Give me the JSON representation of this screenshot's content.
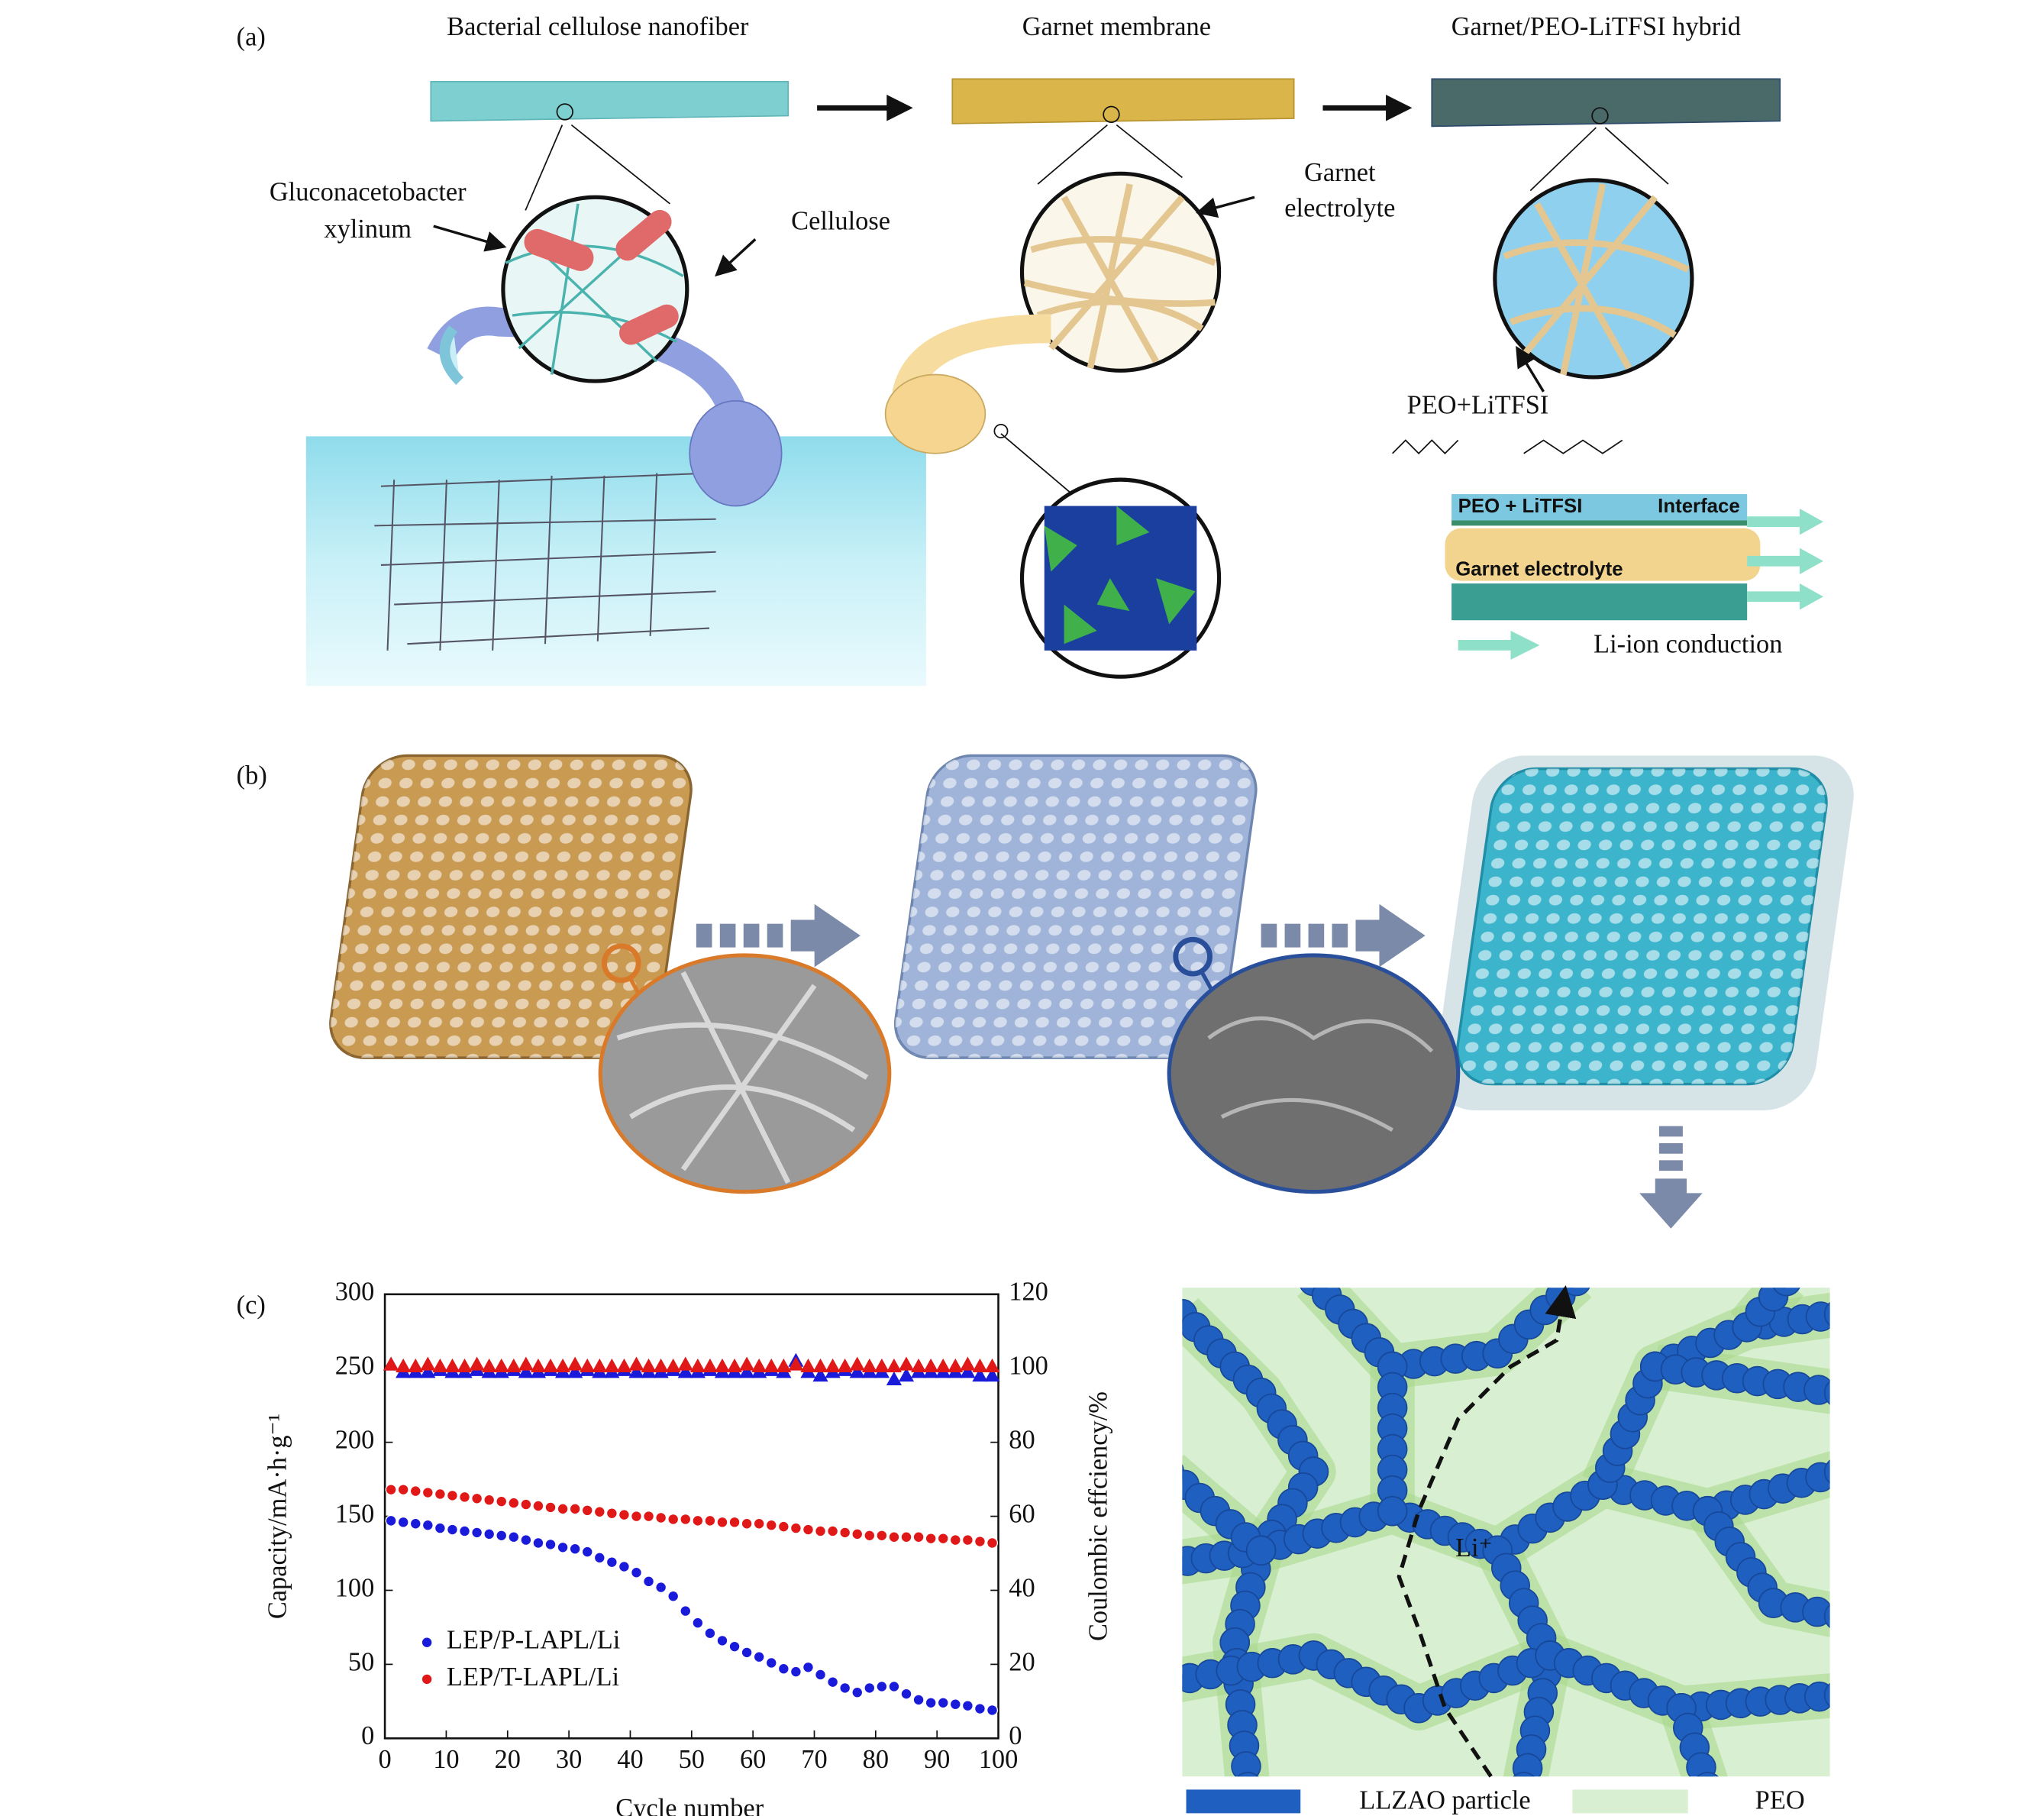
{
  "panel_a": {
    "label": "(a)",
    "titles": [
      "Bacterial cellulose nanofiber",
      "Garnet membrane",
      "Garnet/PEO-LiTFSI hybrid"
    ],
    "bacteria_label": [
      "Gluconacetobacter",
      "xylinum"
    ],
    "cellulose_label": "Cellulose",
    "garnet_label": [
      "Garnet",
      "electrolyte"
    ],
    "peo_label": "PEO+LiTFSI",
    "layer_top": "PEO + LiTFSI",
    "interface": "Interface",
    "layer_mid": "Garnet electrolyte",
    "conduction": "Li-ion conduction"
  },
  "panel_b": {
    "label": "(b)"
  },
  "panel_d": {
    "ion": "Li⁺",
    "legend": [
      "LLZAO particle",
      "PEO"
    ]
  },
  "chart_data": {
    "type": "scatter",
    "label": "(c)",
    "x_label": "Cycle number",
    "y_label": "Capacity/mA·h·g⁻¹",
    "y2_label": "Coulombic effciency/%",
    "x": [
      1,
      3,
      5,
      7,
      9,
      11,
      13,
      15,
      17,
      19,
      21,
      23,
      25,
      27,
      29,
      31,
      33,
      35,
      37,
      39,
      41,
      43,
      45,
      47,
      49,
      51,
      53,
      55,
      57,
      59,
      61,
      63,
      65,
      67,
      69,
      71,
      73,
      75,
      77,
      79,
      81,
      83,
      85,
      87,
      89,
      91,
      93,
      95,
      97,
      99
    ],
    "xlim": [
      0,
      100
    ],
    "xticks": [
      0,
      10,
      20,
      30,
      40,
      50,
      60,
      70,
      80,
      90,
      100
    ],
    "ylim": [
      0,
      300
    ],
    "yticks": [
      0,
      50,
      100,
      150,
      200,
      250,
      300
    ],
    "y2lim": [
      0,
      120
    ],
    "y2ticks": [
      0,
      20,
      40,
      60,
      80,
      100,
      120
    ],
    "series": [
      {
        "name": "LEP/P-LAPL/Li",
        "color": "#1a1adb",
        "marker": "circle",
        "values": [
          147,
          146,
          145,
          144,
          142,
          141,
          140,
          139,
          138,
          137,
          136,
          134,
          132,
          131,
          129,
          128,
          126,
          122,
          119,
          116,
          112,
          106,
          102,
          96,
          86,
          78,
          71,
          66,
          62,
          58,
          55,
          51,
          47,
          45,
          48,
          43,
          38,
          34,
          31,
          34,
          35,
          35,
          30,
          26,
          24,
          24,
          23,
          22,
          20,
          19
        ]
      },
      {
        "name": "LEP/T-LAPL/Li",
        "color": "#e01818",
        "marker": "circle",
        "values": [
          168,
          168,
          167,
          166,
          165,
          164,
          163,
          162,
          161,
          160,
          159,
          158,
          157,
          156,
          155,
          155,
          154,
          153,
          152,
          151,
          150,
          150,
          149,
          148,
          148,
          147,
          147,
          146,
          146,
          145,
          145,
          144,
          143,
          142,
          141,
          140,
          140,
          139,
          138,
          137,
          137,
          136,
          136,
          136,
          135,
          135,
          134,
          134,
          133,
          132
        ]
      },
      {
        "color": "#1a1adb",
        "marker": "triangle",
        "axis": "y2",
        "values": [
          101,
          99,
          99,
          99,
          99.5,
          99,
          99,
          99.5,
          99,
          99,
          99.5,
          99,
          99,
          99.5,
          99,
          99,
          99.5,
          99,
          99,
          99.5,
          99,
          99,
          99,
          99.5,
          99,
          99,
          99.5,
          99,
          99,
          99,
          99,
          99.5,
          99,
          102,
          99,
          98,
          99,
          99.5,
          99,
          99,
          99,
          97,
          98,
          99,
          99,
          99,
          99,
          99,
          98,
          98
        ]
      },
      {
        "color": "#e01818",
        "marker": "triangle",
        "axis": "y2",
        "values": [
          101,
          100.5,
          100.5,
          101,
          100.5,
          100.5,
          100.5,
          101,
          100.5,
          100.5,
          100.5,
          101,
          100.5,
          100.5,
          100.5,
          101,
          100.5,
          100.5,
          100.5,
          100.5,
          101,
          100.5,
          100.5,
          100.5,
          101,
          100.5,
          100.5,
          100.5,
          100.5,
          101,
          100.5,
          100.5,
          100.5,
          101,
          100.5,
          100.5,
          100.5,
          100.5,
          101,
          100.5,
          100.5,
          100.5,
          101,
          100.5,
          100.5,
          100.5,
          100.5,
          101,
          100.5,
          100.5
        ]
      }
    ]
  }
}
